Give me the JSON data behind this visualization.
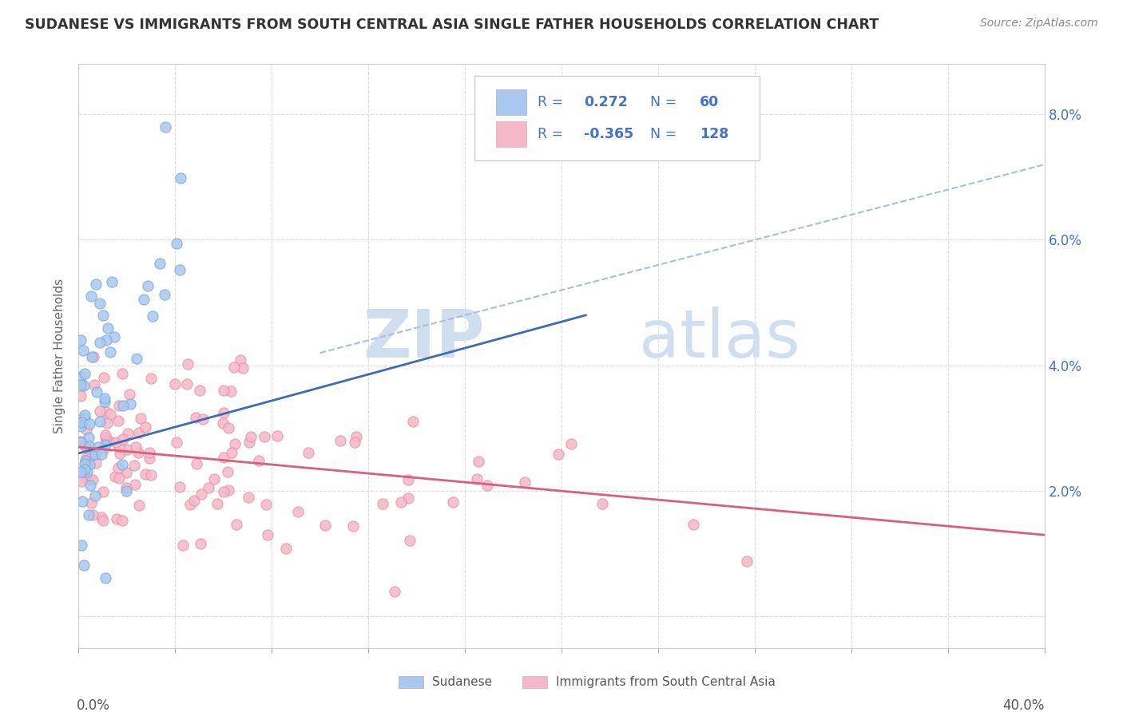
{
  "title": "SUDANESE VS IMMIGRANTS FROM SOUTH CENTRAL ASIA SINGLE FATHER HOUSEHOLDS CORRELATION CHART",
  "source": "Source: ZipAtlas.com",
  "ylabel": "Single Father Households",
  "yticks": [
    "",
    "2.0%",
    "4.0%",
    "6.0%",
    "8.0%"
  ],
  "ytick_vals": [
    0.0,
    0.02,
    0.04,
    0.06,
    0.08
  ],
  "xlim": [
    0.0,
    0.4
  ],
  "ylim": [
    -0.005,
    0.088
  ],
  "legend_blue_r": "0.272",
  "legend_blue_n": "60",
  "legend_pink_r": "-0.365",
  "legend_pink_n": "128",
  "blue_color": "#A8C8F0",
  "pink_color": "#F5B8C8",
  "blue_dot_edge": "#7AAAD8",
  "pink_dot_edge": "#E890A8",
  "blue_line_color": "#3B6CB5",
  "pink_line_color": "#D95F7A",
  "gray_line_color": "#AABDD8",
  "legend_text_color": "#4472C4",
  "watermark_zip": "ZIP",
  "watermark_atlas": "atlas",
  "watermark_color": "#D0DFF0",
  "background_color": "#FFFFFF",
  "grid_color": "#DDDDDD",
  "title_color": "#333333",
  "blue_trend_x0": 0.0,
  "blue_trend_y0": 0.026,
  "blue_trend_x1": 0.21,
  "blue_trend_y1": 0.048,
  "pink_trend_x0": 0.0,
  "pink_trend_y0": 0.027,
  "pink_trend_x1": 0.4,
  "pink_trend_y1": 0.013,
  "gray_trend_x0": 0.1,
  "gray_trend_y0": 0.042,
  "gray_trend_x1": 0.4,
  "gray_trend_y1": 0.072
}
